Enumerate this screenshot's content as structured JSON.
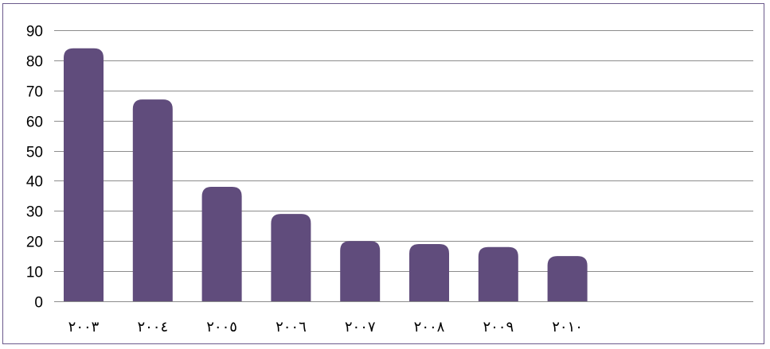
{
  "chart_data": {
    "type": "bar",
    "categories": [
      "٢٠٠٣",
      "٢٠٠٤",
      "٢٠٠٥",
      "٢٠٠٦",
      "٢٠٠٧",
      "٢٠٠٨",
      "٢٠٠٩",
      "٢٠١٠"
    ],
    "values": [
      84,
      67,
      38,
      29,
      20,
      19,
      18,
      15
    ],
    "yticks": [
      "0",
      "10",
      "20",
      "30",
      "40",
      "50",
      "60",
      "70",
      "80",
      "90"
    ],
    "ylim": [
      0,
      90
    ],
    "grid": true,
    "bar_color": "#604c7c",
    "title": "",
    "xlabel": "",
    "ylabel": ""
  }
}
